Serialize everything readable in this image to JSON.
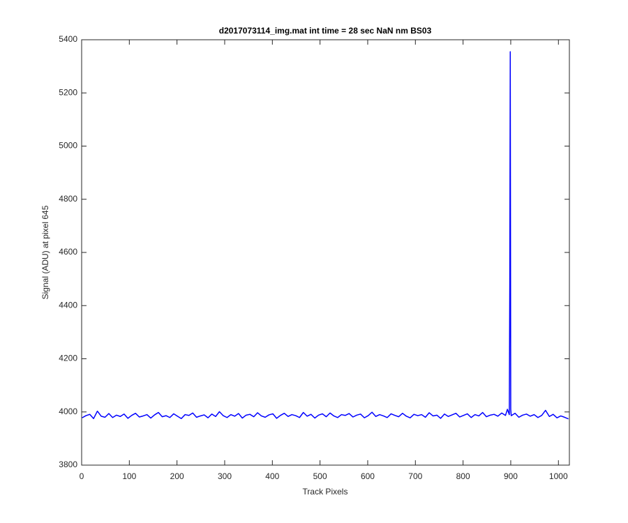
{
  "chart_data": {
    "type": "line",
    "title": "d2017073114_img.mat int time = 28 sec  NaN nm BS03",
    "x_label": "Track Pixels",
    "y_label": "Signal (ADU) at pixel 645",
    "xlim": [
      0,
      1023
    ],
    "ylim": [
      3800,
      5400
    ],
    "xticks": [
      0,
      100,
      200,
      300,
      400,
      500,
      600,
      700,
      800,
      900,
      1000
    ],
    "yticks": [
      3800,
      4000,
      4200,
      4400,
      4600,
      4800,
      5000,
      5200,
      5400
    ],
    "grid": false,
    "x": [
      1,
      9,
      17,
      25,
      33,
      41,
      49,
      57,
      65,
      73,
      81,
      89,
      97,
      105,
      113,
      121,
      129,
      137,
      145,
      153,
      161,
      169,
      177,
      185,
      193,
      201,
      209,
      217,
      225,
      233,
      241,
      249,
      257,
      265,
      273,
      281,
      289,
      297,
      305,
      313,
      321,
      329,
      337,
      345,
      353,
      361,
      369,
      377,
      385,
      393,
      401,
      409,
      417,
      425,
      433,
      441,
      449,
      457,
      465,
      473,
      481,
      489,
      497,
      505,
      513,
      521,
      529,
      537,
      545,
      553,
      561,
      569,
      577,
      585,
      593,
      601,
      609,
      617,
      625,
      633,
      641,
      649,
      657,
      665,
      673,
      681,
      689,
      697,
      705,
      713,
      721,
      729,
      737,
      745,
      753,
      761,
      769,
      777,
      785,
      793,
      801,
      809,
      817,
      825,
      833,
      841,
      849,
      857,
      865,
      873,
      881,
      889,
      893,
      897,
      898,
      899,
      900,
      901,
      909,
      917,
      925,
      933,
      941,
      949,
      957,
      965,
      973,
      981,
      989,
      997,
      1005,
      1013,
      1021
    ],
    "series": [
      {
        "color": "#0000ff",
        "values": [
          3978,
          3986,
          3991,
          3975,
          4003,
          3984,
          3980,
          3994,
          3979,
          3988,
          3983,
          3992,
          3976,
          3987,
          3995,
          3981,
          3985,
          3990,
          3977,
          3989,
          3998,
          3982,
          3986,
          3979,
          3993,
          3984,
          3975,
          3990,
          3987,
          3996,
          3980,
          3985,
          3989,
          3978,
          3992,
          3983,
          4001,
          3986,
          3979,
          3990,
          3984,
          3994,
          3977,
          3988,
          3991,
          3982,
          3997,
          3985,
          3980,
          3989,
          3993,
          3976,
          3987,
          3995,
          3983,
          3990,
          3986,
          3979,
          3998,
          3984,
          3991,
          3977,
          3988,
          3993,
          3982,
          3996,
          3985,
          3979,
          3990,
          3987,
          3994,
          3981,
          3988,
          3992,
          3978,
          3986,
          3999,
          3983,
          3990,
          3985,
          3979,
          3993,
          3987,
          3982,
          3995,
          3984,
          3978,
          3991,
          3986,
          3990,
          3980,
          3997,
          3985,
          3988,
          3976,
          3992,
          3983,
          3989,
          3995,
          3981,
          3987,
          3993,
          3979,
          3990,
          3985,
          3998,
          3982,
          3988,
          3991,
          3984,
          3996,
          3987,
          4010,
          3990,
          4480,
          5355,
          4010,
          3986,
          3995,
          3980,
          3988,
          3992,
          3984,
          3990,
          3979,
          3987,
          4006,
          3983,
          3991,
          3978,
          3985,
          3980,
          3974
        ]
      }
    ]
  }
}
